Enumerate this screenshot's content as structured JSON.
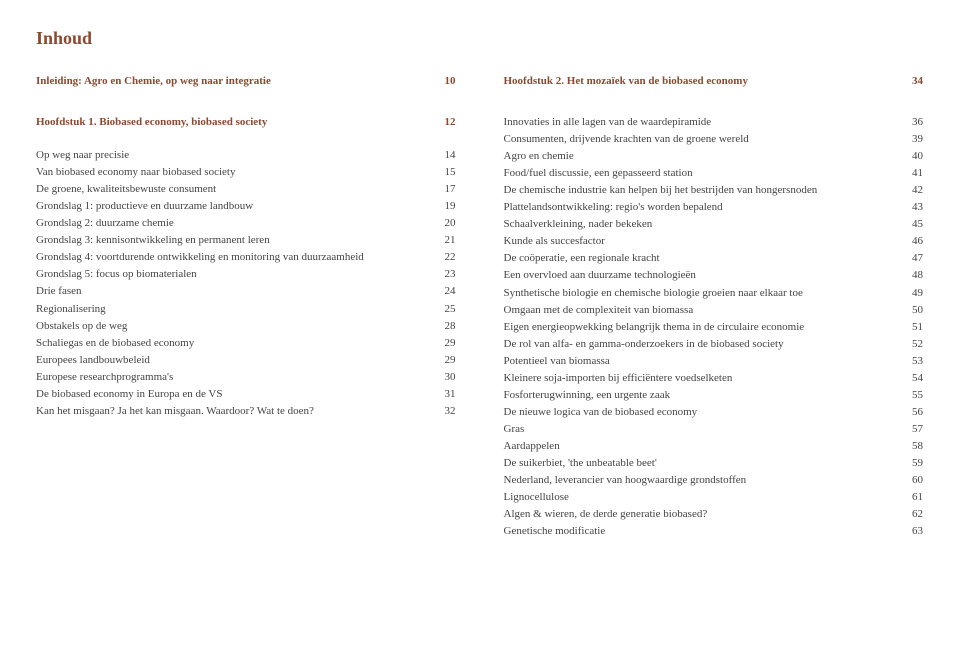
{
  "title": "Inhoud",
  "left": {
    "intro": {
      "label": "Inleiding: Agro en Chemie, op weg naar integratie",
      "page": "10"
    },
    "chapter": {
      "label": "Hoofdstuk 1. Biobased economy, biobased society",
      "page": "12"
    },
    "items": [
      {
        "label": "Op weg naar precisie",
        "page": "14"
      },
      {
        "label": "Van biobased economy naar biobased society",
        "page": "15"
      },
      {
        "label": "De groene, kwaliteitsbewuste consument",
        "page": "17"
      },
      {
        "label": "Grondslag 1: productieve en duurzame landbouw",
        "page": "19"
      },
      {
        "label": "Grondslag 2: duurzame chemie",
        "page": "20"
      },
      {
        "label": "Grondslag 3: kennisontwikkeling en permanent leren",
        "page": "21"
      },
      {
        "label": "Grondslag 4: voortdurende ontwikkeling en monitoring van duurzaamheid",
        "page": "22"
      },
      {
        "label": "Grondslag 5: focus op biomaterialen",
        "page": "23"
      },
      {
        "label": "Drie fasen",
        "page": "24"
      },
      {
        "label": "Regionalisering",
        "page": "25"
      },
      {
        "label": "Obstakels op de weg",
        "page": "28"
      },
      {
        "label": "Schaliegas en de biobased economy",
        "page": "29"
      },
      {
        "label": "Europees landbouwbeleid",
        "page": "29"
      },
      {
        "label": "Europese researchprogramma's",
        "page": "30"
      },
      {
        "label": "De biobased economy in Europa en de VS",
        "page": "31"
      },
      {
        "label": "Kan het misgaan? Ja het kan misgaan. Waardoor? Wat te doen?",
        "page": "32"
      }
    ]
  },
  "right": {
    "chapter": {
      "label": "Hoofdstuk 2. Het mozaïek van de biobased economy",
      "page": "34"
    },
    "items": [
      {
        "label": "Innovaties in alle lagen van de waardepiramide",
        "page": "36"
      },
      {
        "label": "Consumenten, drijvende krachten van de groene wereld",
        "page": "39"
      },
      {
        "label": "Agro en chemie",
        "page": "40"
      },
      {
        "label": "Food/fuel discussie, een gepasseerd station",
        "page": "41"
      },
      {
        "label": "De chemische industrie kan helpen bij het bestrijden van hongersnoden",
        "page": "42"
      },
      {
        "label": "Plattelandsontwikkeling: regio's worden bepalend",
        "page": "43"
      },
      {
        "label": "Schaalverkleining, nader bekeken",
        "page": "45"
      },
      {
        "label": "Kunde als succesfactor",
        "page": "46"
      },
      {
        "label": "De coöperatie, een regionale kracht",
        "page": "47"
      },
      {
        "label": "Een overvloed aan duurzame technologieën",
        "page": "48"
      },
      {
        "label": "Synthetische biologie en chemische biologie groeien naar elkaar toe",
        "page": "49"
      },
      {
        "label": "Omgaan met de complexiteit van biomassa",
        "page": "50"
      },
      {
        "label": "Eigen energieopwekking belangrijk thema in de circulaire economie",
        "page": "51"
      },
      {
        "label": "De rol van alfa- en gamma-onderzoekers in de biobased society",
        "page": "52"
      },
      {
        "label": "Potentieel van biomassa",
        "page": "53"
      },
      {
        "label": "Kleinere soja-importen bij efficiëntere voedselketen",
        "page": "54"
      },
      {
        "label": "Fosforterugwinning, een urgente zaak",
        "page": "55"
      },
      {
        "label": "De nieuwe logica van de biobased economy",
        "page": "56"
      },
      {
        "label": "Gras",
        "page": "57"
      },
      {
        "label": "Aardappelen",
        "page": "58"
      },
      {
        "label": "De suikerbiet, 'the unbeatable beet'",
        "page": "59"
      },
      {
        "label": "Nederland, leverancier van hoogwaardige grondstoffen",
        "page": "60"
      },
      {
        "label": "Lignocellulose",
        "page": "61"
      },
      {
        "label": "Algen & wieren, de derde generatie biobased?",
        "page": "62"
      },
      {
        "label": "Genetische modificatie",
        "page": "63"
      }
    ]
  }
}
